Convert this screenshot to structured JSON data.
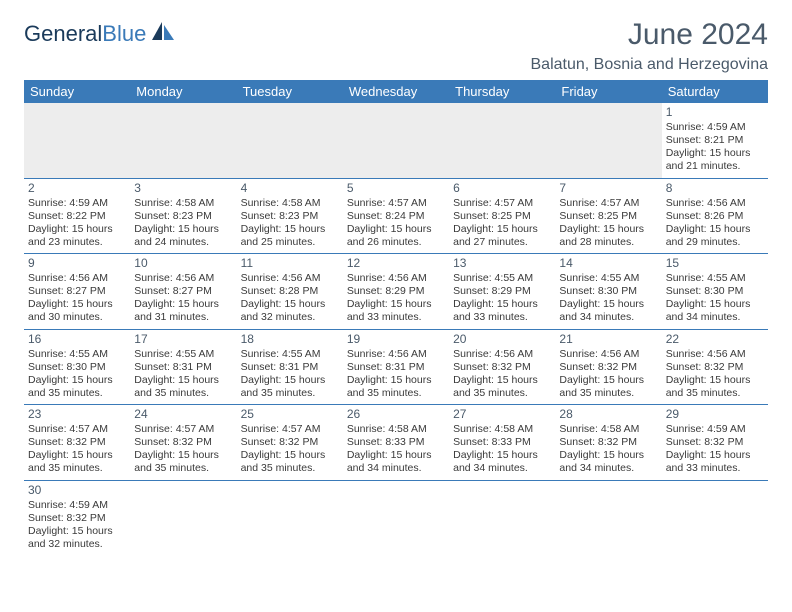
{
  "logo": {
    "text1": "General",
    "text2": "Blue"
  },
  "title": "June 2024",
  "location": "Balatun, Bosnia and Herzegovina",
  "colors": {
    "header_bg": "#3a7ab8",
    "header_text": "#ffffff",
    "grid_line": "#3a7ab8",
    "blank_bg": "#ededed",
    "text": "#3a3a3a",
    "title_text": "#4a5a6a",
    "logo_dark": "#1a3a5a",
    "logo_blue": "#3a7ab8"
  },
  "weekdays": [
    "Sunday",
    "Monday",
    "Tuesday",
    "Wednesday",
    "Thursday",
    "Friday",
    "Saturday"
  ],
  "weeks": [
    [
      null,
      null,
      null,
      null,
      null,
      null,
      {
        "n": "1",
        "sr": "4:59 AM",
        "ss": "8:21 PM",
        "dl": "15 hours and 21 minutes."
      }
    ],
    [
      {
        "n": "2",
        "sr": "4:59 AM",
        "ss": "8:22 PM",
        "dl": "15 hours and 23 minutes."
      },
      {
        "n": "3",
        "sr": "4:58 AM",
        "ss": "8:23 PM",
        "dl": "15 hours and 24 minutes."
      },
      {
        "n": "4",
        "sr": "4:58 AM",
        "ss": "8:23 PM",
        "dl": "15 hours and 25 minutes."
      },
      {
        "n": "5",
        "sr": "4:57 AM",
        "ss": "8:24 PM",
        "dl": "15 hours and 26 minutes."
      },
      {
        "n": "6",
        "sr": "4:57 AM",
        "ss": "8:25 PM",
        "dl": "15 hours and 27 minutes."
      },
      {
        "n": "7",
        "sr": "4:57 AM",
        "ss": "8:25 PM",
        "dl": "15 hours and 28 minutes."
      },
      {
        "n": "8",
        "sr": "4:56 AM",
        "ss": "8:26 PM",
        "dl": "15 hours and 29 minutes."
      }
    ],
    [
      {
        "n": "9",
        "sr": "4:56 AM",
        "ss": "8:27 PM",
        "dl": "15 hours and 30 minutes."
      },
      {
        "n": "10",
        "sr": "4:56 AM",
        "ss": "8:27 PM",
        "dl": "15 hours and 31 minutes."
      },
      {
        "n": "11",
        "sr": "4:56 AM",
        "ss": "8:28 PM",
        "dl": "15 hours and 32 minutes."
      },
      {
        "n": "12",
        "sr": "4:56 AM",
        "ss": "8:29 PM",
        "dl": "15 hours and 33 minutes."
      },
      {
        "n": "13",
        "sr": "4:55 AM",
        "ss": "8:29 PM",
        "dl": "15 hours and 33 minutes."
      },
      {
        "n": "14",
        "sr": "4:55 AM",
        "ss": "8:30 PM",
        "dl": "15 hours and 34 minutes."
      },
      {
        "n": "15",
        "sr": "4:55 AM",
        "ss": "8:30 PM",
        "dl": "15 hours and 34 minutes."
      }
    ],
    [
      {
        "n": "16",
        "sr": "4:55 AM",
        "ss": "8:30 PM",
        "dl": "15 hours and 35 minutes."
      },
      {
        "n": "17",
        "sr": "4:55 AM",
        "ss": "8:31 PM",
        "dl": "15 hours and 35 minutes."
      },
      {
        "n": "18",
        "sr": "4:55 AM",
        "ss": "8:31 PM",
        "dl": "15 hours and 35 minutes."
      },
      {
        "n": "19",
        "sr": "4:56 AM",
        "ss": "8:31 PM",
        "dl": "15 hours and 35 minutes."
      },
      {
        "n": "20",
        "sr": "4:56 AM",
        "ss": "8:32 PM",
        "dl": "15 hours and 35 minutes."
      },
      {
        "n": "21",
        "sr": "4:56 AM",
        "ss": "8:32 PM",
        "dl": "15 hours and 35 minutes."
      },
      {
        "n": "22",
        "sr": "4:56 AM",
        "ss": "8:32 PM",
        "dl": "15 hours and 35 minutes."
      }
    ],
    [
      {
        "n": "23",
        "sr": "4:57 AM",
        "ss": "8:32 PM",
        "dl": "15 hours and 35 minutes."
      },
      {
        "n": "24",
        "sr": "4:57 AM",
        "ss": "8:32 PM",
        "dl": "15 hours and 35 minutes."
      },
      {
        "n": "25",
        "sr": "4:57 AM",
        "ss": "8:32 PM",
        "dl": "15 hours and 35 minutes."
      },
      {
        "n": "26",
        "sr": "4:58 AM",
        "ss": "8:33 PM",
        "dl": "15 hours and 34 minutes."
      },
      {
        "n": "27",
        "sr": "4:58 AM",
        "ss": "8:33 PM",
        "dl": "15 hours and 34 minutes."
      },
      {
        "n": "28",
        "sr": "4:58 AM",
        "ss": "8:32 PM",
        "dl": "15 hours and 34 minutes."
      },
      {
        "n": "29",
        "sr": "4:59 AM",
        "ss": "8:32 PM",
        "dl": "15 hours and 33 minutes."
      }
    ],
    [
      {
        "n": "30",
        "sr": "4:59 AM",
        "ss": "8:32 PM",
        "dl": "15 hours and 32 minutes."
      },
      null,
      null,
      null,
      null,
      null,
      null
    ]
  ],
  "labels": {
    "sunrise": "Sunrise:",
    "sunset": "Sunset:",
    "daylight": "Daylight:"
  }
}
